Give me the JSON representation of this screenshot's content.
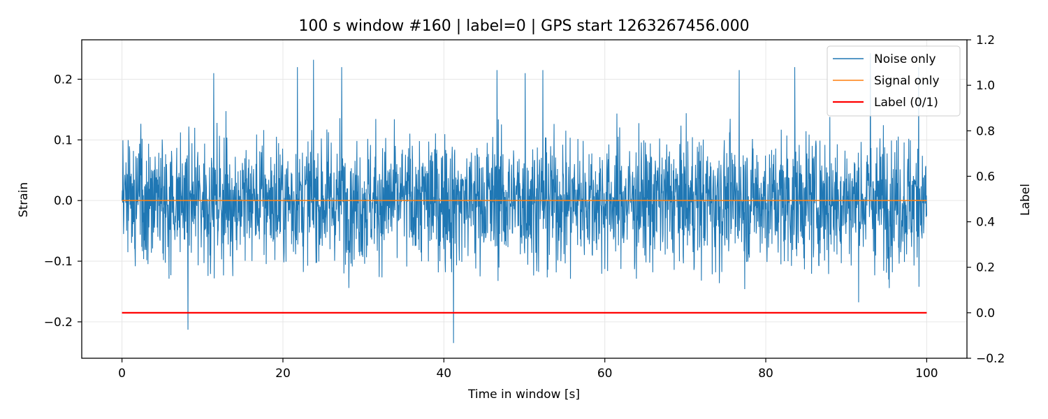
{
  "chart_data": {
    "type": "line",
    "title": "100 s window #160 | label=0 | GPS start 1263267456.000",
    "xlabel": "Time in window [s]",
    "ylabel": "Strain",
    "y2label": "Label",
    "xlim": [
      -5,
      105
    ],
    "ylim": [
      -0.26,
      0.265
    ],
    "y2lim": [
      -0.2,
      1.2
    ],
    "xticks": [
      0,
      20,
      40,
      60,
      80,
      100
    ],
    "xtick_labels": [
      "0",
      "20",
      "40",
      "60",
      "80",
      "100"
    ],
    "yticks": [
      -0.2,
      -0.1,
      0.0,
      0.1,
      0.2
    ],
    "ytick_labels": [
      "−0.2",
      "−0.1",
      "0.0",
      "0.1",
      "0.2"
    ],
    "y2ticks": [
      -0.2,
      0.0,
      0.2,
      0.4,
      0.6,
      0.8,
      1.0,
      1.2
    ],
    "y2tick_labels": [
      "−0.2",
      "0.0",
      "0.2",
      "0.4",
      "0.6",
      "0.8",
      "1.0",
      "1.2"
    ],
    "grid": true,
    "legend_position": "top-right",
    "series": [
      {
        "name": "Noise only",
        "axis": "left",
        "color": "#1f77b4",
        "description_stats": {
          "x_range": [
            0,
            100
          ],
          "typical_amplitude": 0.09
        },
        "x": [
          0,
          8.2,
          11.4,
          21.8,
          23.8,
          27.3,
          41.2,
          46.6,
          50.1,
          52.3,
          76.7,
          83.6,
          93.0,
          99.0
        ],
        "y": [
          0.0,
          -0.213,
          0.21,
          0.22,
          0.232,
          0.22,
          -0.235,
          0.215,
          0.21,
          0.215,
          0.215,
          0.22,
          0.243,
          0.22
        ]
      },
      {
        "name": "Signal only",
        "axis": "left",
        "color": "#ff7f0e",
        "x": [
          0,
          100
        ],
        "y": [
          0.0,
          0.0
        ]
      },
      {
        "name": "Label (0/1)",
        "axis": "right",
        "color": "#ff0000",
        "x": [
          0,
          100
        ],
        "y": [
          0,
          0
        ]
      }
    ]
  }
}
